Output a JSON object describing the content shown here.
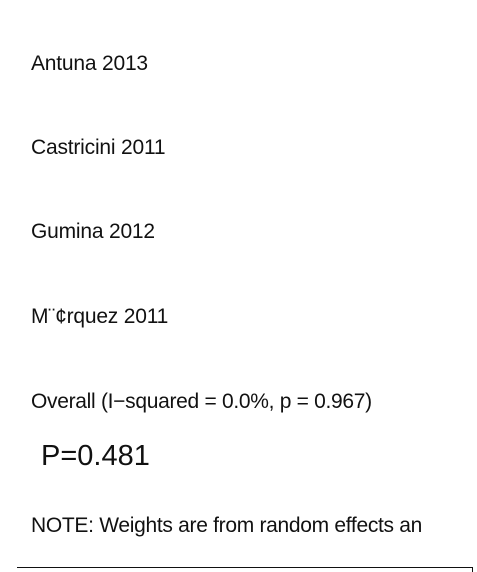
{
  "chart_data": {
    "type": "table",
    "studies": [
      "Antuna 2013",
      "Castricini 2011",
      "Gumina 2012",
      "M¨¢rquez 2011"
    ],
    "overall_label": "Overall  (I−squared = 0.0%, p = 0.967)",
    "p_value_label": "P=0.481",
    "note": "NOTE: Weights are from random effects an"
  }
}
